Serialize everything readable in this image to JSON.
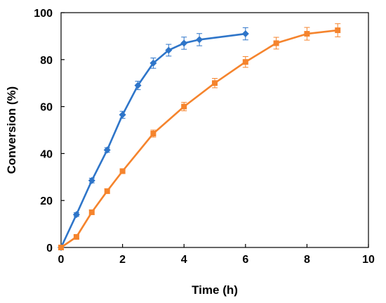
{
  "chart_data": {
    "type": "line",
    "title": "",
    "xlabel": "Time (h)",
    "ylabel": "Conversion (%)",
    "xlim": [
      0,
      10
    ],
    "ylim": [
      0,
      100
    ],
    "xticks": [
      0,
      2,
      4,
      6,
      8,
      10
    ],
    "yticks": [
      0,
      20,
      40,
      60,
      80,
      100
    ],
    "grid": false,
    "legend": "none",
    "series": [
      {
        "color": "#2E75C9",
        "marker": "diamond",
        "x": [
          0,
          0.5,
          1,
          1.5,
          2,
          2.5,
          3,
          3.5,
          4,
          4.5,
          6
        ],
        "y": [
          0,
          14,
          28.5,
          41.5,
          56.5,
          69,
          78.5,
          84,
          87,
          88.5,
          91
        ],
        "error": [
          0,
          0.8,
          1.0,
          1.0,
          1.5,
          1.8,
          2.2,
          2.5,
          2.6,
          2.6,
          2.6
        ]
      },
      {
        "color": "#F5842D",
        "marker": "square",
        "x": [
          0,
          0.5,
          1,
          1.5,
          2,
          3,
          4,
          5,
          6,
          7,
          8,
          9
        ],
        "y": [
          0,
          4.5,
          15,
          24,
          32.5,
          48.5,
          60,
          70,
          79,
          87,
          91,
          92.5
        ],
        "error": [
          0,
          0.8,
          1.0,
          1.0,
          1.0,
          1.5,
          1.8,
          2.0,
          2.3,
          2.5,
          2.7,
          2.8
        ]
      }
    ]
  }
}
